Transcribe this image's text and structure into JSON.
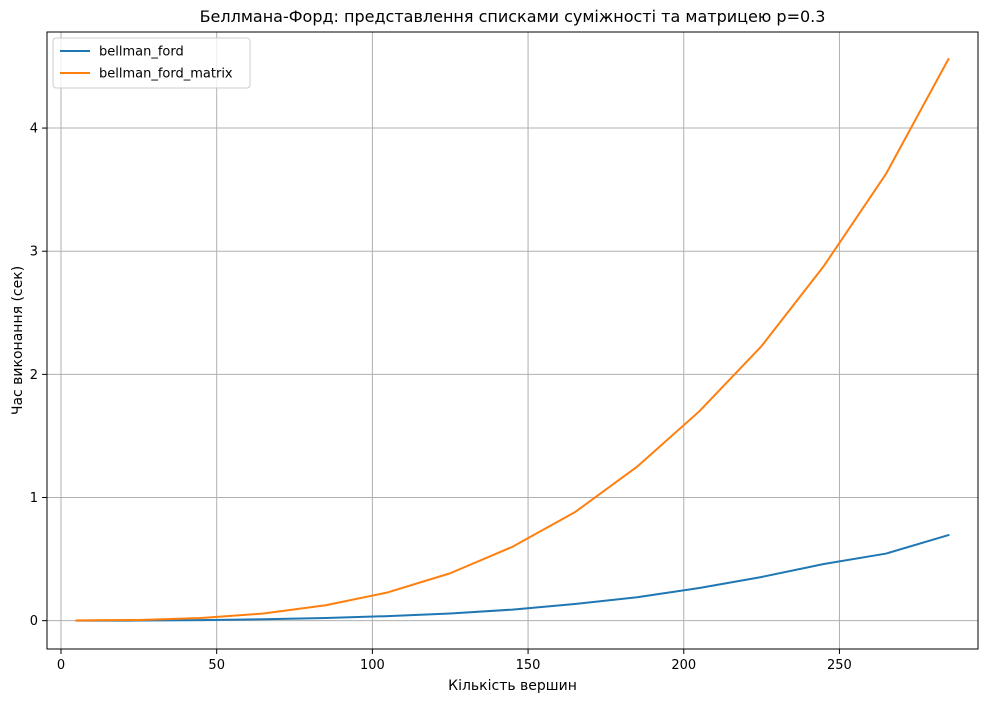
{
  "chart_data": {
    "type": "line",
    "title": "Беллмана-Форд: представлення списками суміжності та матрицею p=0.3",
    "xlabel": "Кількість вершин",
    "ylabel": "Час виконання (сек)",
    "xlim": [
      -4.5,
      294.5
    ],
    "ylim": [
      -0.23,
      4.78
    ],
    "xticks": [
      0,
      50,
      100,
      150,
      200,
      250
    ],
    "yticks": [
      0,
      1,
      2,
      3,
      4
    ],
    "grid": true,
    "legend_position": "top-left",
    "x": [
      5,
      25,
      45,
      65,
      85,
      105,
      125,
      145,
      165,
      185,
      205,
      225,
      245,
      265,
      285
    ],
    "series": [
      {
        "name": "bellman_ford",
        "color": "#1f77b4",
        "values": [
          0.0,
          0.001,
          0.004,
          0.012,
          0.022,
          0.037,
          0.058,
          0.09,
          0.135,
          0.19,
          0.265,
          0.355,
          0.46,
          0.545,
          0.695
        ]
      },
      {
        "name": "bellman_ford_matrix",
        "color": "#ff7f0e",
        "values": [
          0.002,
          0.006,
          0.022,
          0.058,
          0.125,
          0.23,
          0.385,
          0.6,
          0.88,
          1.25,
          1.7,
          2.23,
          2.88,
          3.63,
          4.56
        ]
      }
    ]
  }
}
